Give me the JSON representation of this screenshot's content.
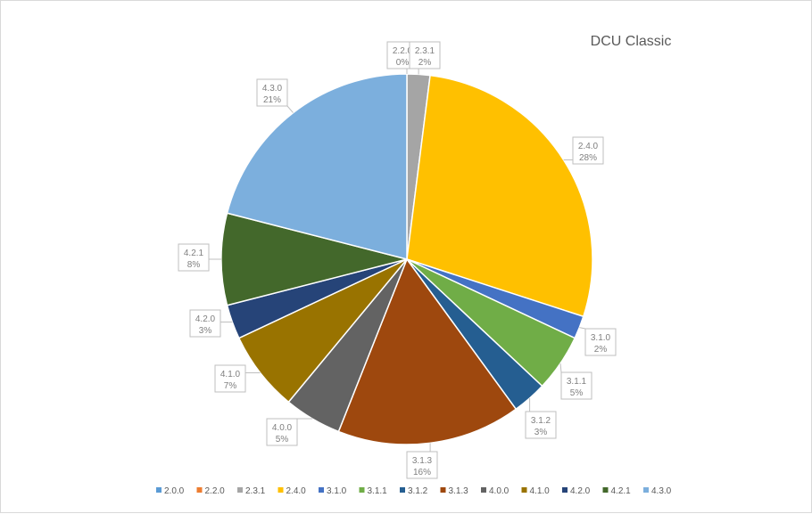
{
  "chart_data": {
    "type": "pie",
    "title": "DCU Classic",
    "legend_position": "bottom",
    "slices": [
      {
        "label": "2.0.0",
        "value": 0,
        "percent_label": "",
        "color": "#5b9bd5"
      },
      {
        "label": "2.2.0",
        "value": 0.0,
        "percent_label": "0%",
        "color": "#ed7d31"
      },
      {
        "label": "2.3.1",
        "value": 2.0,
        "percent_label": "2%",
        "color": "#a5a5a5"
      },
      {
        "label": "2.4.0",
        "value": 28.0,
        "percent_label": "28%",
        "color": "#ffc000"
      },
      {
        "label": "3.1.0",
        "value": 2.0,
        "percent_label": "2%",
        "color": "#4472c4"
      },
      {
        "label": "3.1.1",
        "value": 5.0,
        "percent_label": "5%",
        "color": "#70ad47"
      },
      {
        "label": "3.1.2",
        "value": 3.0,
        "percent_label": "3%",
        "color": "#255e91"
      },
      {
        "label": "3.1.3",
        "value": 16.0,
        "percent_label": "16%",
        "color": "#9e480e"
      },
      {
        "label": "4.0.0",
        "value": 5.0,
        "percent_label": "5%",
        "color": "#636363"
      },
      {
        "label": "4.1.0",
        "value": 7.0,
        "percent_label": "7%",
        "color": "#997300"
      },
      {
        "label": "4.2.0",
        "value": 3.0,
        "percent_label": "3%",
        "color": "#264478"
      },
      {
        "label": "4.2.1",
        "value": 8.0,
        "percent_label": "8%",
        "color": "#43682b"
      },
      {
        "label": "4.3.0",
        "value": 21.0,
        "percent_label": "21%",
        "color": "#7cafdd"
      }
    ]
  }
}
